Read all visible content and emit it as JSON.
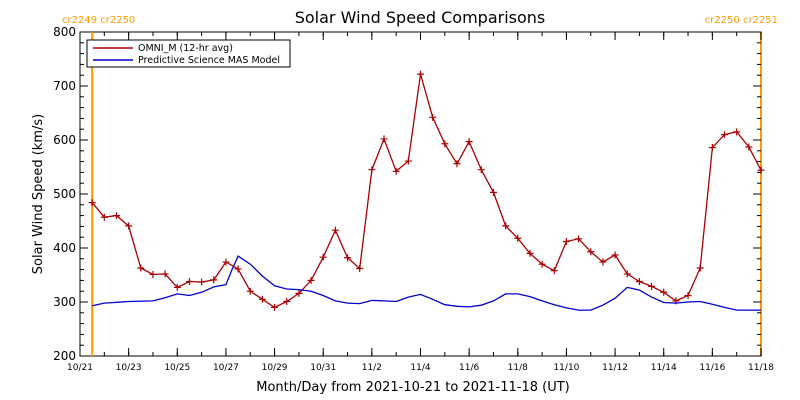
{
  "chart_data": {
    "type": "line",
    "title": "Solar Wind Speed Comparisons",
    "xlabel": "Month/Day from 2021-10-21 to 2021-11-18 (UT)",
    "ylabel": "Solar Wind Speed (km/s)",
    "xlim": [
      "2021-10-21",
      "2021-11-18"
    ],
    "ylim": [
      200,
      800
    ],
    "yticks": [
      200,
      300,
      400,
      500,
      600,
      700,
      800
    ],
    "xtick_labels": [
      "10/21",
      "10/23",
      "10/25",
      "10/27",
      "10/29",
      "10/31",
      "11/2",
      "11/4",
      "11/6",
      "11/8",
      "11/10",
      "11/12",
      "11/14",
      "11/16",
      "11/18"
    ],
    "xtick_dates": [
      "2021-10-21",
      "2021-10-23",
      "2021-10-25",
      "2021-10-27",
      "2021-10-29",
      "2021-10-31",
      "2021-11-02",
      "2021-11-04",
      "2021-11-06",
      "2021-11-08",
      "2021-11-10",
      "2021-11-12",
      "2021-11-14",
      "2021-11-16",
      "2021-11-18"
    ],
    "legend_position": "top-left",
    "rotation_markers": [
      {
        "label": "cr2249 cr2250",
        "date": "2021-10-21 12:00",
        "color": "#ff9900"
      },
      {
        "label": "cr2250 cr2251",
        "date": "2021-11-18 00:00",
        "color": "#ff9900"
      }
    ],
    "series": [
      {
        "name": "OMNI_M (12-hr avg)",
        "color": "#aa0000",
        "marker": "plus",
        "x": [
          "2021-10-21 12:00",
          "2021-10-22 00:00",
          "2021-10-22 12:00",
          "2021-10-23 00:00",
          "2021-10-23 12:00",
          "2021-10-24 00:00",
          "2021-10-24 12:00",
          "2021-10-25 00:00",
          "2021-10-25 12:00",
          "2021-10-26 00:00",
          "2021-10-26 12:00",
          "2021-10-27 00:00",
          "2021-10-27 12:00",
          "2021-10-28 00:00",
          "2021-10-28 12:00",
          "2021-10-29 00:00",
          "2021-10-29 12:00",
          "2021-10-30 00:00",
          "2021-10-30 12:00",
          "2021-10-31 00:00",
          "2021-10-31 12:00",
          "2021-11-01 00:00",
          "2021-11-01 12:00",
          "2021-11-02 00:00",
          "2021-11-02 12:00",
          "2021-11-03 00:00",
          "2021-11-03 12:00",
          "2021-11-04 00:00",
          "2021-11-04 12:00",
          "2021-11-05 00:00",
          "2021-11-05 12:00",
          "2021-11-06 00:00",
          "2021-11-06 12:00",
          "2021-11-07 00:00",
          "2021-11-07 12:00",
          "2021-11-08 00:00",
          "2021-11-08 12:00",
          "2021-11-09 00:00",
          "2021-11-09 12:00",
          "2021-11-10 00:00",
          "2021-11-10 12:00",
          "2021-11-11 00:00",
          "2021-11-11 12:00",
          "2021-11-12 00:00",
          "2021-11-12 12:00",
          "2021-11-13 00:00",
          "2021-11-13 12:00",
          "2021-11-14 00:00",
          "2021-11-14 12:00",
          "2021-11-15 00:00",
          "2021-11-15 12:00",
          "2021-11-16 00:00",
          "2021-11-16 12:00",
          "2021-11-17 00:00",
          "2021-11-17 12:00",
          "2021-11-18 00:00"
        ],
        "values": [
          484,
          457,
          460,
          441,
          363,
          351,
          352,
          327,
          338,
          337,
          341,
          374,
          361,
          320,
          305,
          290,
          301,
          316,
          340,
          383,
          433,
          382,
          362,
          545,
          602,
          542,
          561,
          722,
          642,
          593,
          556,
          597,
          545,
          503,
          441,
          418,
          390,
          370,
          358,
          412,
          417,
          393,
          374,
          387,
          352,
          338,
          329,
          318,
          302,
          312,
          363,
          586,
          610,
          615,
          587,
          544
        ]
      },
      {
        "name": "Predictive Science MAS Model",
        "color": "#0000cc",
        "marker": "none",
        "x": [
          "2021-10-21 12:00",
          "2021-10-22 00:00",
          "2021-10-23 00:00",
          "2021-10-24 00:00",
          "2021-10-24 12:00",
          "2021-10-25 00:00",
          "2021-10-25 12:00",
          "2021-10-26 00:00",
          "2021-10-26 12:00",
          "2021-10-27 00:00",
          "2021-10-27 06:00",
          "2021-10-27 12:00",
          "2021-10-28 00:00",
          "2021-10-28 12:00",
          "2021-10-29 00:00",
          "2021-10-29 12:00",
          "2021-10-30 00:00",
          "2021-10-30 12:00",
          "2021-10-31 00:00",
          "2021-10-31 12:00",
          "2021-11-01 00:00",
          "2021-11-01 12:00",
          "2021-11-02 00:00",
          "2021-11-02 12:00",
          "2021-11-03 00:00",
          "2021-11-03 12:00",
          "2021-11-04 00:00",
          "2021-11-04 12:00",
          "2021-11-05 00:00",
          "2021-11-05 12:00",
          "2021-11-06 00:00",
          "2021-11-06 12:00",
          "2021-11-07 00:00",
          "2021-11-07 12:00",
          "2021-11-08 00:00",
          "2021-11-08 12:00",
          "2021-11-09 00:00",
          "2021-11-09 12:00",
          "2021-11-10 00:00",
          "2021-11-10 12:00",
          "2021-11-11 00:00",
          "2021-11-11 12:00",
          "2021-11-12 00:00",
          "2021-11-12 12:00",
          "2021-11-13 00:00",
          "2021-11-13 12:00",
          "2021-11-14 00:00",
          "2021-11-14 12:00",
          "2021-11-15 00:00",
          "2021-11-15 12:00",
          "2021-11-16 00:00",
          "2021-11-16 12:00",
          "2021-11-17 00:00",
          "2021-11-17 12:00",
          "2021-11-18 00:00"
        ],
        "values": [
          293,
          298,
          301,
          302,
          308,
          315,
          312,
          318,
          328,
          332,
          360,
          385,
          370,
          348,
          330,
          324,
          323,
          320,
          312,
          302,
          298,
          297,
          303,
          302,
          301,
          309,
          314,
          305,
          295,
          292,
          291,
          294,
          302,
          315,
          315,
          310,
          302,
          295,
          289,
          285,
          285,
          294,
          307,
          327,
          322,
          309,
          299,
          298,
          300,
          301,
          296,
          290,
          285,
          285,
          285
        ]
      }
    ]
  }
}
